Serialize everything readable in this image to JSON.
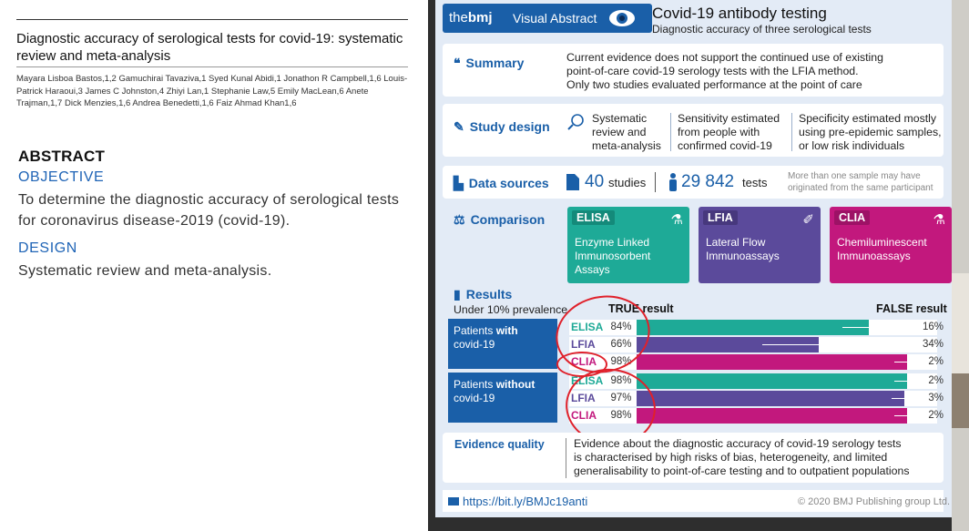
{
  "paper": {
    "title": "Diagnostic accuracy of serological tests for covid-19: systematic review and meta-analysis",
    "authors": "Mayara Lisboa Bastos,1,2 Gamuchirai Tavaziva,1 Syed Kunal Abidi,1 Jonathon R Campbell,1,6 Louis-Patrick Haraoui,3 James C Johnston,4 Zhiyi Lan,1 Stephanie Law,5 Emily MacLean,6 Anete Trajman,1,7 Dick Menzies,1,6 Andrea Benedetti,1,6 Faiz Ahmad Khan1,6",
    "abstract_heading": "ABSTRACT",
    "objective_heading": "OBJECTIVE",
    "objective_text": "To determine the diagnostic accuracy of serological tests for coronavirus disease-2019 (covid-19).",
    "design_heading": "DESIGN",
    "design_text": "Systematic review and meta-analysis."
  },
  "va": {
    "logo_bold": "the",
    "logo_bmj": "bmj",
    "label": "Visual Abstract",
    "title": "Covid-19 antibody testing",
    "subtitle": "Diagnostic accuracy of three serological tests",
    "summary": {
      "heading": "Summary",
      "lines": [
        "Current evidence does not support the continued use of existing",
        "point-of-care covid-19 serology tests with the LFIA method.",
        "Only two studies evaluated performance at the point of care"
      ]
    },
    "study_design": {
      "heading": "Study design",
      "col1": [
        "Systematic",
        "review and",
        "meta-analysis"
      ],
      "col2": [
        "Sensitivity estimated",
        "from people with",
        "confirmed covid-19"
      ],
      "col3": [
        "Specificity estimated mostly",
        "using pre-epidemic samples,",
        "or low risk individuals"
      ]
    },
    "data_sources": {
      "heading": "Data sources",
      "studies_num": "40",
      "studies_label": "studies",
      "tests_num": "29 842",
      "tests_label": "tests",
      "note": [
        "More than one sample may have",
        "originated from the same participant"
      ]
    },
    "comparison": {
      "heading": "Comparison",
      "items": [
        {
          "tag": "ELISA",
          "desc": [
            "Enzyme Linked",
            "Immunosorbent",
            "Assays"
          ],
          "color": "#1eaa97"
        },
        {
          "tag": "LFIA",
          "desc": [
            "Lateral Flow",
            "Immunoassays"
          ],
          "color": "#5b4a9b"
        },
        {
          "tag": "CLIA",
          "desc": [
            "Chemiluminescent",
            "Immunoassays"
          ],
          "color": "#c2187d"
        }
      ]
    },
    "results": {
      "heading": "Results",
      "prevalence": "Under 10% prevalence",
      "true_label": "TRUE result",
      "false_label": "FALSE result",
      "with_group": {
        "plain": "Patients ",
        "bold": "with",
        "rest": "covid-19"
      },
      "without_group": {
        "plain": "Patients ",
        "bold": "without",
        "rest": "covid-19"
      },
      "with_rows": [
        {
          "test": "ELISA",
          "true_pct": "84%",
          "false_pct": "16%",
          "value": 0.84,
          "color": "#1eaa97"
        },
        {
          "test": "LFIA",
          "true_pct": "66%",
          "false_pct": "34%",
          "value": 0.66,
          "color": "#5b4a9b"
        },
        {
          "test": "CLIA",
          "true_pct": "98%",
          "false_pct": "2%",
          "value": 0.98,
          "color": "#c2187d"
        }
      ],
      "without_rows": [
        {
          "test": "ELISA",
          "true_pct": "98%",
          "false_pct": "2%",
          "value": 0.98,
          "color": "#1eaa97"
        },
        {
          "test": "LFIA",
          "true_pct": "97%",
          "false_pct": "3%",
          "value": 0.97,
          "color": "#5b4a9b"
        },
        {
          "test": "CLIA",
          "true_pct": "98%",
          "false_pct": "2%",
          "value": 0.98,
          "color": "#c2187d"
        }
      ]
    },
    "evidence": {
      "heading": "Evidence quality",
      "lines": [
        "Evidence about the diagnostic accuracy of covid-19 serology tests",
        "is characterised by high risks of bias, heterogeneity, and limited",
        "generalisability to point-of-care testing and to outpatient populations"
      ]
    },
    "footer_link": "https://bit.ly/BMJc19anti",
    "footer_copy": "© 2020 BMJ Publishing group Ltd."
  }
}
